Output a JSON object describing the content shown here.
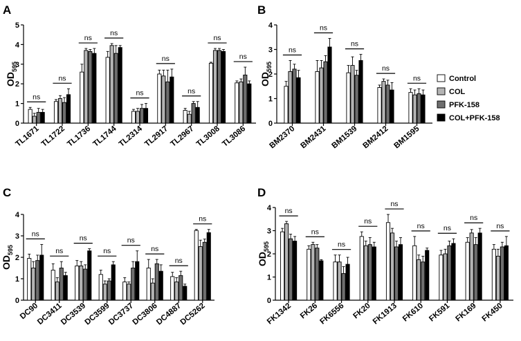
{
  "legend": {
    "entries": [
      {
        "name": "Control",
        "color": "#ffffff"
      },
      {
        "name": "COL",
        "color": "#b4b4b4"
      },
      {
        "name": "PFK-158",
        "color": "#6e6e6e"
      },
      {
        "name": "COL+PFK-158",
        "color": "#000000"
      }
    ]
  },
  "chart_data": [
    {
      "panel": "A",
      "type": "bar",
      "ylabel": "OD",
      "ylabel_sub": "595",
      "ylim": [
        0,
        5
      ],
      "yticks": [
        0,
        1,
        2,
        3,
        4,
        5
      ],
      "categories": [
        "TL1671",
        "TL1722",
        "TL1736",
        "TL1744",
        "TL2314",
        "TL2917",
        "TL2967",
        "TL3008",
        "TL3086"
      ],
      "series": [
        {
          "name": "Control",
          "values": [
            0.7,
            1.1,
            2.6,
            3.35,
            0.6,
            2.5,
            0.65,
            3.05,
            2.05
          ],
          "errors": [
            0.1,
            0.1,
            0.4,
            0.3,
            0.1,
            0.2,
            0.1,
            0.05,
            0.1
          ]
        },
        {
          "name": "COL",
          "values": [
            0.35,
            1.25,
            3.7,
            3.95,
            0.6,
            2.4,
            0.45,
            3.7,
            2.1
          ],
          "errors": [
            0.15,
            0.15,
            0.1,
            0.1,
            0.15,
            0.3,
            0.15,
            0.1,
            0.15
          ]
        },
        {
          "name": "PFK-158",
          "values": [
            0.55,
            1.05,
            3.65,
            3.55,
            0.75,
            2.1,
            1.0,
            3.7,
            2.45
          ],
          "errors": [
            0.2,
            0.25,
            0.1,
            0.4,
            0.2,
            0.6,
            0.1,
            0.1,
            0.4
          ]
        },
        {
          "name": "COL+PFK-158",
          "values": [
            0.55,
            1.45,
            3.55,
            3.85,
            0.75,
            2.35,
            0.8,
            3.65,
            2.0
          ],
          "errors": [
            0.15,
            0.3,
            0.25,
            0.1,
            0.25,
            0.4,
            0.3,
            0.1,
            0.15
          ]
        }
      ],
      "significance": [
        "ns",
        "ns",
        "ns",
        "ns",
        "ns",
        "ns",
        "ns",
        "ns",
        "ns"
      ]
    },
    {
      "panel": "B",
      "type": "bar",
      "ylabel": "OD",
      "ylabel_sub": "595",
      "ylim": [
        0,
        4
      ],
      "yticks": [
        0,
        1,
        2,
        3,
        4
      ],
      "categories": [
        "BM2370",
        "BM2431",
        "BM1539",
        "BM2412",
        "BM1595"
      ],
      "series": [
        {
          "name": "Control",
          "values": [
            1.5,
            2.1,
            2.05,
            1.45,
            1.25
          ],
          "errors": [
            0.2,
            0.45,
            0.3,
            0.1,
            0.15
          ]
        },
        {
          "name": "COL",
          "values": [
            2.1,
            2.25,
            2.35,
            1.7,
            1.15
          ],
          "errors": [
            0.45,
            0.3,
            0.35,
            0.1,
            0.2
          ]
        },
        {
          "name": "PFK-158",
          "values": [
            2.2,
            2.5,
            1.95,
            1.55,
            1.2
          ],
          "errors": [
            0.2,
            0.25,
            0.2,
            0.2,
            0.2
          ]
        },
        {
          "name": "COL+PFK-158",
          "values": [
            1.85,
            3.1,
            2.55,
            1.35,
            1.15
          ],
          "errors": [
            0.3,
            0.35,
            0.25,
            0.3,
            0.2
          ]
        }
      ],
      "significance": [
        "ns",
        "ns",
        "ns",
        "ns",
        "ns"
      ]
    },
    {
      "panel": "C",
      "type": "bar",
      "ylabel": "OD",
      "ylabel_sub": "595",
      "ylim": [
        0,
        4
      ],
      "yticks": [
        0,
        1,
        2,
        3,
        4
      ],
      "categories": [
        "DC90",
        "DC3411",
        "DC3539",
        "DC3599",
        "DC3737",
        "DC3806",
        "DC4887",
        "DC5262"
      ],
      "series": [
        {
          "name": "Control",
          "values": [
            1.95,
            1.4,
            1.6,
            1.2,
            0.85,
            1.5,
            1.1,
            3.25
          ],
          "errors": [
            0.2,
            0.3,
            0.25,
            0.2,
            0.2,
            0.4,
            0.2,
            0.05
          ]
        },
        {
          "name": "COL",
          "values": [
            1.5,
            0.85,
            1.6,
            0.75,
            0.75,
            0.8,
            0.85,
            2.5
          ],
          "errors": [
            0.3,
            0.2,
            0.2,
            0.15,
            0.1,
            0.2,
            0.2,
            0.3
          ]
        },
        {
          "name": "PFK-158",
          "values": [
            1.85,
            1.5,
            1.45,
            0.9,
            1.5,
            1.7,
            1.15,
            2.7
          ],
          "errors": [
            0.25,
            0.3,
            0.2,
            0.1,
            0.3,
            0.2,
            0.2,
            0.15
          ]
        },
        {
          "name": "COL+PFK-158",
          "values": [
            2.1,
            1.15,
            2.3,
            1.65,
            1.8,
            1.35,
            0.65,
            3.15
          ],
          "errors": [
            0.5,
            0.15,
            0.1,
            0.15,
            0.5,
            0.3,
            0.1,
            0.15
          ]
        }
      ],
      "significance": [
        "ns",
        "ns",
        "ns",
        "ns",
        "ns",
        "ns",
        "ns",
        "ns"
      ]
    },
    {
      "panel": "D",
      "type": "bar",
      "ylabel": "OD",
      "ylabel_sub": "595",
      "ylim": [
        0,
        4
      ],
      "yticks": [
        0,
        1,
        2,
        3,
        4
      ],
      "categories": [
        "FK1342",
        "FK26",
        "FK6556",
        "FK20",
        "FK1913",
        "FK610",
        "FK591",
        "FK169",
        "FK450"
      ],
      "series": [
        {
          "name": "Control",
          "values": [
            2.95,
            2.2,
            1.65,
            2.75,
            3.35,
            2.35,
            1.95,
            2.5,
            2.2
          ],
          "errors": [
            0.15,
            0.15,
            0.3,
            0.2,
            0.35,
            0.4,
            0.2,
            0.2,
            0.2
          ]
        },
        {
          "name": "COL",
          "values": [
            3.3,
            2.4,
            1.65,
            2.35,
            2.9,
            1.75,
            2.0,
            2.9,
            1.9
          ],
          "errors": [
            0.1,
            0.1,
            0.3,
            0.2,
            0.2,
            0.2,
            0.2,
            0.15,
            0.3
          ]
        },
        {
          "name": "PFK-158",
          "values": [
            2.65,
            2.25,
            1.15,
            2.4,
            2.3,
            1.65,
            2.35,
            2.4,
            2.3
          ],
          "errors": [
            0.2,
            0.15,
            0.3,
            0.3,
            0.25,
            0.25,
            0.2,
            0.3,
            0.2
          ]
        },
        {
          "name": "COL+PFK-158",
          "values": [
            2.55,
            1.7,
            1.55,
            2.3,
            2.4,
            2.15,
            2.45,
            2.9,
            2.35
          ],
          "errors": [
            0.2,
            0.05,
            0.3,
            0.2,
            0.3,
            0.1,
            0.2,
            0.2,
            0.4
          ]
        }
      ],
      "significance": [
        "ns",
        "ns",
        "ns",
        "ns",
        "ns",
        "ns",
        "ns",
        "ns",
        "ns"
      ]
    }
  ]
}
